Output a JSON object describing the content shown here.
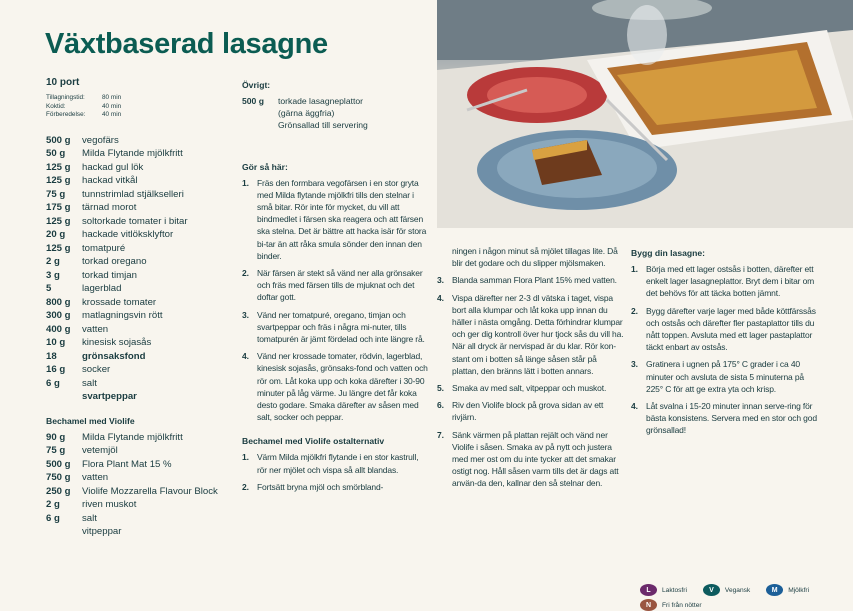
{
  "title": "Växtbaserad lasagne",
  "portions": "10 port",
  "times": [
    {
      "label": "Tillagningstid:",
      "value": "80 min"
    },
    {
      "label": "Koktid:",
      "value": "40 min"
    },
    {
      "label": "Förberedelse:",
      "value": "40 min"
    }
  ],
  "ingredients": [
    {
      "amount": "500 g",
      "name": "vegofärs"
    },
    {
      "amount": "50 g",
      "name": "Milda Flytande mjölkfritt"
    },
    {
      "amount": "125 g",
      "name": "hackad gul lök"
    },
    {
      "amount": "125 g",
      "name": "hackad vitkål"
    },
    {
      "amount": "75 g",
      "name": "tunnstrimlad stjälkselleri"
    },
    {
      "amount": "175 g",
      "name": "tärnad morot"
    },
    {
      "amount": "125 g",
      "name": "soltorkade tomater i bitar"
    },
    {
      "amount": "20 g",
      "name": "hackade vitlöksklyftor"
    },
    {
      "amount": "125 g",
      "name": "tomatpuré"
    },
    {
      "amount": "2 g",
      "name": "torkad oregano"
    },
    {
      "amount": "3 g",
      "name": "torkad timjan"
    },
    {
      "amount": "5",
      "name": "lagerblad"
    },
    {
      "amount": "800 g",
      "name": "krossade tomater"
    },
    {
      "amount": "300 g",
      "name": "matlagningsvin rött"
    },
    {
      "amount": "400 g",
      "name": "vatten"
    },
    {
      "amount": "10 g",
      "name": "kinesisk sojasås"
    },
    {
      "amount": "18",
      "name": "grönsaksfond"
    },
    {
      "amount": "16 g",
      "name": "socker"
    },
    {
      "amount": "6 g",
      "name": "salt"
    },
    {
      "amount": "",
      "name": "svartpeppar"
    }
  ],
  "bechamel": {
    "heading": "Bechamel med Violife",
    "ingredients": [
      {
        "amount": "90 g",
        "name": "Milda Flytande mjölkfritt"
      },
      {
        "amount": "75 g",
        "name": "vetemjöl"
      },
      {
        "amount": "500 g",
        "name": "Flora Plant Mat 15 %"
      },
      {
        "amount": "750 g",
        "name": "vatten"
      },
      {
        "amount": "250 g",
        "name": "Violife Mozzarella Flavour Block"
      },
      {
        "amount": "2 g",
        "name": "riven muskot"
      },
      {
        "amount": "6 g",
        "name": "salt"
      },
      {
        "amount": "",
        "name": "vitpeppar"
      }
    ]
  },
  "other": {
    "heading": "Övrigt:",
    "amount": "500 g",
    "lines": [
      "torkade lasagneplattor",
      "(gärna äggfria)",
      "Grönsallad till servering"
    ]
  },
  "method": {
    "heading": "Gör så här:",
    "steps": [
      {
        "n": "1.",
        "text": "Fräs den formbara vegofärsen i en stor gryta med Milda flytande mjölkfri tills den stelnar i små bitar. Rör inte för mycket, du vill att bindmedlet i färsen ska reagera och att färsen ska stelna. Det är bättre att hacka isär för stora bi-tar än att råka smula sönder den innan den binder."
      },
      {
        "n": "2.",
        "text": "När färsen är stekt så vänd ner alla grönsaker och fräs med färsen tills de mjuknat och det doftar gott."
      },
      {
        "n": "3.",
        "text": "Vänd ner tomatpuré, oregano, timjan och svartpeppar och fräs i några mi-nuter, tills tomatpurén är jämt fördelad och inte längre rå."
      },
      {
        "n": "4.",
        "text": "Vänd ner krossade tomater, rödvin, lagerblad, kinesisk sojasås, grönsaks-fond och vatten och rör om. Låt koka upp och koka därefter i 30-90 minuter på låg värme. Ju längre det får koka desto godare. Smaka därefter av såsen med salt, socker och peppar."
      }
    ]
  },
  "bechamel_method": {
    "heading": "Bechamel med Violife ostalternativ",
    "steps": [
      {
        "n": "1.",
        "text": "Värm Milda mjölkfri flytande i en stor kastrull, rör ner mjölet och vispa så allt blandas."
      },
      {
        "n": "2.",
        "text": "Fortsätt bryna mjöl och smörbland-",
        "continued": "ningen i någon minut så mjölet tillagas lite. Då blir det godare och du slipper mjölsmaken."
      },
      {
        "n": "3.",
        "text": "Blanda samman Flora Plant 15% med vatten."
      },
      {
        "n": "4.",
        "text": "Vispa därefter ner 2-3 dl vätska i taget, vispa bort alla klumpar och låt koka upp innan du häller i nästa omgång. Detta förhindrar klumpar och ger dig kontroll över hur tjock sås du vill ha. När all dryck är nervispad är du klar. Rör kon-stant om i botten så länge såsen står på plattan, den bränns lätt i botten annars."
      },
      {
        "n": "5.",
        "text": "Smaka av med salt, vitpeppar och muskot."
      },
      {
        "n": "6.",
        "text": "Riv den Violife block på grova sidan av ett rivjärn."
      },
      {
        "n": "7.",
        "text": "Sänk värmen på plattan rejält och vänd ner Violife i såsen. Smaka av på nytt och justera med mer ost om du inte tycker att det smakar ostigt nog. Håll såsen varm tills det är dags att använ-da den, kallnar den så stelnar den."
      }
    ]
  },
  "build": {
    "heading": "Bygg din lasagne:",
    "steps": [
      {
        "n": "1.",
        "text": "Börja med ett lager ostsås i botten, därefter ett enkelt lager lasagneplattor. Bryt dem i bitar om det behövs för att täcka botten jämnt."
      },
      {
        "n": "2.",
        "text": "Bygg därefter varje lager med både köttfärssås och ostsås och därefter fler pastaplattor tills du nått toppen. Avsluta med ett lager pastaplattor täckt enbart av ostsås."
      },
      {
        "n": "3.",
        "text": "Gratinera i ugnen på 175° C grader i ca 40 minuter och avsluta de sista 5 minuterna på 225° C för att ge extra yta och krisp."
      },
      {
        "n": "4.",
        "text": "Låt svalna i 15-20 minuter innan serve-ring för bästa konsistens. Servera med en stor och god grönsallad!"
      }
    ]
  },
  "legend": [
    {
      "letter": "L",
      "label": "Laktosfri",
      "color": "#6b2a6b"
    },
    {
      "letter": "V",
      "label": "Vegansk",
      "color": "#0d5b5e"
    },
    {
      "letter": "M",
      "label": "Mjölkfri",
      "color": "#1c5f98"
    },
    {
      "letter": "N",
      "label": "Fri från nötter",
      "color": "#9a5540"
    }
  ],
  "colors": {
    "title": "#0b5c52",
    "text": "#1a3c40",
    "background": "#f8f5ee"
  }
}
